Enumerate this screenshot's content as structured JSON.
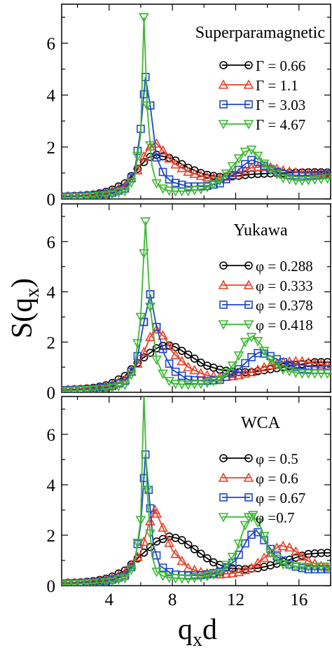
{
  "figure": {
    "ylabel_main": "S(q",
    "ylabel_sub": "x",
    "ylabel_close": ")",
    "xlabel_main": "q",
    "xlabel_sub": "x",
    "xlabel_tail": "d"
  },
  "chart_data": [
    {
      "type": "line",
      "title": "Superparamagnetic",
      "xlabel": "q_x d",
      "ylabel": "S(q_x)",
      "xlim": [
        1,
        18
      ],
      "ylim": [
        0,
        7.5
      ],
      "xticks": [
        4,
        8,
        12,
        16
      ],
      "yticks": [
        0,
        2,
        4,
        6
      ],
      "grid": false,
      "legend_position": "right",
      "series": [
        {
          "name": "Γ = 0.66",
          "color": "#000000",
          "marker": "circle",
          "x": [
            1,
            2,
            3,
            4,
            5,
            6,
            6.5,
            7,
            8,
            9,
            10,
            11,
            12,
            13,
            14,
            15,
            16,
            17,
            18
          ],
          "y": [
            0.1,
            0.12,
            0.17,
            0.3,
            0.6,
            1.3,
            1.6,
            1.7,
            1.55,
            1.2,
            0.95,
            0.85,
            0.88,
            0.95,
            0.98,
            1.0,
            1.02,
            1.03,
            1.02
          ]
        },
        {
          "name": "Γ = 1.1",
          "color": "#e8412a",
          "marker": "triangle-up",
          "x": [
            1,
            2,
            3,
            4,
            5,
            5.8,
            6.4,
            6.9,
            7.5,
            8,
            9,
            10,
            11,
            12,
            13,
            14,
            15,
            16,
            17,
            18
          ],
          "y": [
            0.1,
            0.11,
            0.15,
            0.25,
            0.5,
            1.1,
            1.9,
            2.2,
            1.8,
            1.4,
            1.05,
            0.85,
            0.8,
            0.95,
            1.2,
            1.25,
            1.1,
            1.0,
            0.98,
            0.98
          ]
        },
        {
          "name": "Γ = 3.03",
          "color": "#1f46c8",
          "marker": "square",
          "x": [
            1,
            2,
            3,
            4,
            5,
            5.6,
            6,
            6.3,
            6.6,
            7,
            7.5,
            8,
            9,
            10,
            11,
            12,
            12.5,
            13,
            13.5,
            14,
            15,
            16,
            17,
            18
          ],
          "y": [
            0.08,
            0.1,
            0.13,
            0.2,
            0.4,
            1.0,
            2.7,
            4.7,
            3.6,
            1.6,
            0.9,
            0.65,
            0.48,
            0.48,
            0.6,
            1.0,
            1.3,
            1.5,
            1.4,
            1.2,
            0.95,
            0.9,
            0.92,
            0.95
          ]
        },
        {
          "name": "Γ = 4.67",
          "color": "#3cb832",
          "marker": "triangle-down",
          "x": [
            1,
            2,
            3,
            4,
            5,
            5.6,
            6,
            6.2,
            6.4,
            6.7,
            7,
            7.5,
            8,
            9,
            10,
            11,
            12,
            12.5,
            13,
            13.5,
            14,
            15,
            16,
            17,
            18
          ],
          "y": [
            0.05,
            0.07,
            0.1,
            0.15,
            0.3,
            0.8,
            2.5,
            7.0,
            3.6,
            1.3,
            0.6,
            0.35,
            0.3,
            0.3,
            0.4,
            0.7,
            1.4,
            1.8,
            1.9,
            1.6,
            1.2,
            0.8,
            0.7,
            0.75,
            0.8
          ]
        }
      ]
    },
    {
      "type": "line",
      "title": "Yukawa",
      "xlabel": "q_x d",
      "ylabel": "S(q_x)",
      "xlim": [
        1,
        18
      ],
      "ylim": [
        0,
        7.5
      ],
      "xticks": [
        4,
        8,
        12,
        16
      ],
      "yticks": [
        0,
        2,
        4,
        6
      ],
      "grid": false,
      "legend_position": "right",
      "series": [
        {
          "name": "φ = 0.288",
          "color": "#000000",
          "marker": "circle",
          "x": [
            1,
            2,
            3,
            4,
            5,
            6,
            7,
            7.6,
            8.2,
            9,
            10,
            11,
            12,
            13,
            14,
            15,
            16,
            17,
            18
          ],
          "y": [
            0.1,
            0.12,
            0.18,
            0.3,
            0.65,
            1.3,
            1.75,
            1.9,
            1.8,
            1.5,
            1.1,
            0.9,
            0.8,
            0.8,
            0.9,
            1.0,
            1.1,
            1.2,
            1.2
          ]
        },
        {
          "name": "φ = 0.333",
          "color": "#e8412a",
          "marker": "triangle-up",
          "x": [
            1,
            2,
            3,
            4,
            5,
            6,
            6.6,
            7,
            7.5,
            8,
            9,
            10,
            11,
            12,
            13,
            14,
            15,
            16,
            17,
            18
          ],
          "y": [
            0.1,
            0.11,
            0.15,
            0.25,
            0.5,
            1.3,
            2.2,
            2.5,
            2.2,
            1.6,
            1.0,
            0.7,
            0.6,
            0.65,
            0.8,
            1.05,
            1.2,
            1.25,
            1.15,
            1.05
          ]
        },
        {
          "name": "φ = 0.378",
          "color": "#1f46c8",
          "marker": "square",
          "x": [
            1,
            2,
            3,
            4,
            5,
            5.7,
            6.2,
            6.6,
            7,
            7.5,
            8,
            9,
            10,
            11,
            12,
            13,
            13.5,
            14,
            15,
            16,
            17,
            18
          ],
          "y": [
            0.08,
            0.1,
            0.13,
            0.2,
            0.45,
            1.1,
            2.8,
            3.9,
            2.6,
            1.5,
            0.9,
            0.5,
            0.45,
            0.5,
            0.8,
            1.4,
            1.6,
            1.5,
            1.2,
            0.95,
            0.9,
            0.9
          ]
        },
        {
          "name": "φ = 0.418",
          "color": "#3cb832",
          "marker": "triangle-down",
          "x": [
            1,
            2,
            3,
            4,
            5,
            5.6,
            6,
            6.3,
            6.6,
            7,
            7.5,
            8,
            9,
            10,
            11,
            12,
            12.6,
            13.1,
            13.6,
            14,
            15,
            16,
            17,
            18
          ],
          "y": [
            0.05,
            0.07,
            0.1,
            0.15,
            0.3,
            0.9,
            3.0,
            6.8,
            3.4,
            1.3,
            0.6,
            0.35,
            0.3,
            0.35,
            0.5,
            1.2,
            2.0,
            2.25,
            1.9,
            1.4,
            0.9,
            0.75,
            0.75,
            0.75
          ]
        }
      ]
    },
    {
      "type": "line",
      "title": "WCA",
      "xlabel": "q_x d",
      "ylabel": "S(q_x)",
      "xlim": [
        1,
        18
      ],
      "ylim": [
        0,
        7.5
      ],
      "xticks": [
        4,
        8,
        12,
        16
      ],
      "yticks": [
        0,
        2,
        4,
        6
      ],
      "grid": false,
      "legend_position": "right",
      "series": [
        {
          "name": "φ = 0.5",
          "color": "#000000",
          "marker": "circle",
          "x": [
            1,
            2,
            3,
            4,
            5,
            6,
            7,
            7.8,
            8.5,
            9.5,
            10.5,
            11.5,
            12.5,
            13.5,
            14.5,
            15.5,
            16.5,
            17.5,
            18
          ],
          "y": [
            0.1,
            0.12,
            0.18,
            0.3,
            0.6,
            1.2,
            1.75,
            1.95,
            1.85,
            1.4,
            0.95,
            0.7,
            0.65,
            0.7,
            0.85,
            1.05,
            1.25,
            1.3,
            1.3
          ]
        },
        {
          "name": "φ = 0.6",
          "color": "#e8412a",
          "marker": "triangle-up",
          "x": [
            1,
            2,
            3,
            4,
            5,
            6,
            6.5,
            6.9,
            7.4,
            8,
            9,
            10,
            11,
            12,
            13,
            14,
            14.8,
            15.5,
            16.5,
            17.5,
            18
          ],
          "y": [
            0.1,
            0.11,
            0.15,
            0.25,
            0.5,
            1.3,
            2.4,
            3.0,
            2.3,
            1.4,
            0.7,
            0.5,
            0.45,
            0.5,
            0.7,
            1.2,
            1.6,
            1.5,
            1.0,
            0.75,
            0.7
          ]
        },
        {
          "name": "φ = 0.67",
          "color": "#1f46c8",
          "marker": "square",
          "x": [
            1,
            2,
            3,
            4,
            5,
            5.6,
            6,
            6.3,
            6.5,
            6.8,
            7.2,
            8,
            9,
            10,
            11,
            12,
            12.8,
            13.3,
            13.8,
            14.5,
            15.5,
            16.5,
            17.5,
            18
          ],
          "y": [
            0.08,
            0.1,
            0.13,
            0.2,
            0.4,
            0.9,
            2.4,
            5.2,
            3.8,
            1.6,
            0.8,
            0.45,
            0.4,
            0.42,
            0.55,
            1.0,
            1.9,
            2.2,
            1.8,
            1.2,
            0.8,
            0.65,
            0.65,
            0.65
          ]
        },
        {
          "name": "φ =0.7",
          "color": "#3cb832",
          "marker": "triangle-down",
          "x": [
            1,
            2,
            3,
            4,
            5,
            5.6,
            6,
            6.2,
            6.4,
            6.7,
            7,
            7.5,
            8,
            9,
            10,
            11,
            12,
            12.6,
            13.1,
            13.6,
            14.2,
            15,
            16,
            17,
            18
          ],
          "y": [
            0.05,
            0.07,
            0.1,
            0.15,
            0.3,
            0.8,
            2.6,
            7.6,
            3.8,
            1.2,
            0.55,
            0.35,
            0.3,
            0.28,
            0.35,
            0.5,
            1.3,
            2.4,
            2.8,
            2.3,
            1.3,
            0.85,
            0.75,
            0.75,
            0.75
          ]
        }
      ]
    }
  ]
}
